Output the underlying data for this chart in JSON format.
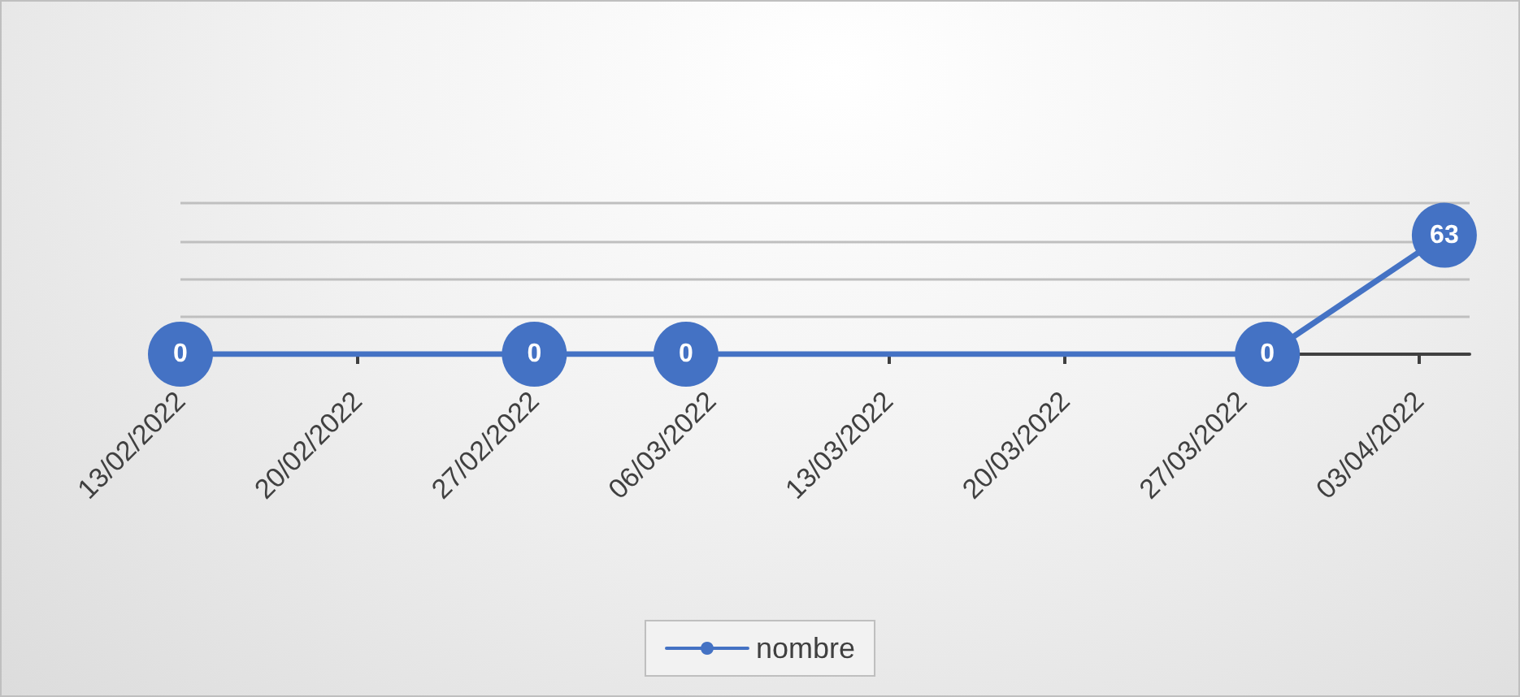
{
  "chart_data": {
    "type": "line",
    "x": [
      "2022-02-13",
      "2022-02-27",
      "2022-03-05",
      "2022-03-28",
      "2022-04-04"
    ],
    "series": [
      {
        "name": "nombre",
        "color": "#4472c4",
        "values": [
          0,
          0,
          0,
          0,
          63
        ]
      }
    ],
    "xlim": [
      "2022-02-13",
      "2022-04-05"
    ],
    "xticks": [
      {
        "value": "2022-02-13",
        "label": "13/02/2022"
      },
      {
        "value": "2022-02-20",
        "label": "20/02/2022"
      },
      {
        "value": "2022-02-27",
        "label": "27/02/2022"
      },
      {
        "value": "2022-03-06",
        "label": "06/03/2022"
      },
      {
        "value": "2022-03-13",
        "label": "13/03/2022"
      },
      {
        "value": "2022-03-20",
        "label": "20/03/2022"
      },
      {
        "value": "2022-03-27",
        "label": "27/03/2022"
      },
      {
        "value": "2022-04-03",
        "label": "03/04/2022"
      }
    ],
    "ylim": [
      0,
      80
    ],
    "yticks": [
      {
        "value": 0,
        "label": null
      },
      {
        "value": 20,
        "label": null
      },
      {
        "value": 40,
        "label": null
      },
      {
        "value": 60,
        "label": null
      },
      {
        "value": 80,
        "label": null
      }
    ],
    "tick_labels": "x",
    "grid": "y",
    "legend": "bottom",
    "marker": "circle",
    "line_style": "solid",
    "data_labels": true
  }
}
